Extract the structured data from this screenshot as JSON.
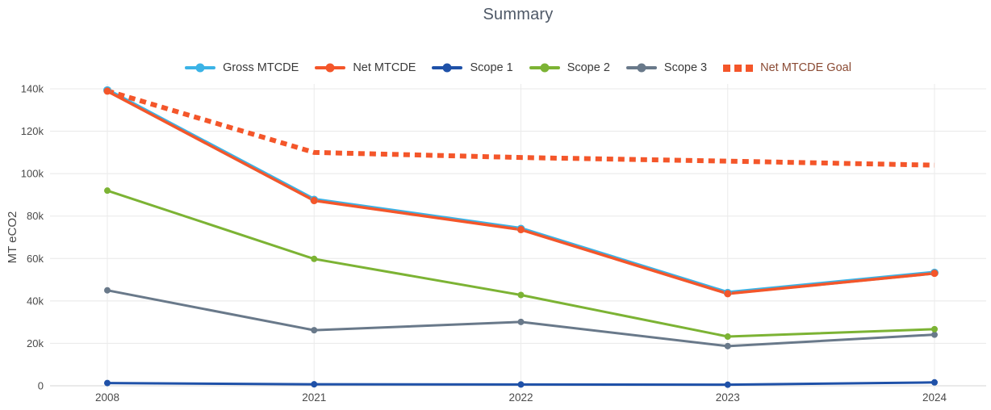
{
  "title": "Summary",
  "chart_data": {
    "type": "line",
    "title": "Summary",
    "xlabel": "",
    "ylabel": "MT eCO2",
    "ylim": [
      0,
      140000
    ],
    "ytick_values": [
      0,
      20000,
      40000,
      60000,
      80000,
      100000,
      120000,
      140000
    ],
    "ytick_labels": [
      "0",
      "20k",
      "40k",
      "60k",
      "80k",
      "100k",
      "120k",
      "140k"
    ],
    "categories": [
      "2008",
      "2021",
      "2022",
      "2023",
      "2024"
    ],
    "grid": true,
    "legend_position": "top",
    "series": [
      {
        "name": "Gross MTCDE",
        "color": "#3bb3e6",
        "style": "solid",
        "markers": true,
        "label_color": "#3a3a3a",
        "values": [
          139300,
          87700,
          74000,
          43800,
          53300
        ]
      },
      {
        "name": "Net MTCDE",
        "color": "#f4562a",
        "style": "solid",
        "markers": true,
        "label_color": "#3a3a3a",
        "values": [
          138900,
          87300,
          73600,
          43400,
          53000
        ]
      },
      {
        "name": "Scope 1",
        "color": "#1f51a8",
        "style": "solid",
        "markers": true,
        "label_color": "#3a3a3a",
        "values": [
          1300,
          700,
          600,
          500,
          1600
        ]
      },
      {
        "name": "Scope 2",
        "color": "#7cb334",
        "style": "solid",
        "markers": true,
        "label_color": "#3a3a3a",
        "values": [
          92000,
          59800,
          42800,
          23200,
          26700
        ]
      },
      {
        "name": "Scope 3",
        "color": "#69798a",
        "style": "solid",
        "markers": true,
        "label_color": "#3a3a3a",
        "values": [
          45000,
          26200,
          30100,
          18700,
          24100
        ]
      },
      {
        "name": "Net MTCDE Goal",
        "color": "#f4562a",
        "style": "dashed",
        "markers": false,
        "label_color": "#8a4a33",
        "values": [
          139000,
          110000,
          107600,
          105900,
          104000
        ]
      }
    ],
    "colors": {
      "grid": "#e8e8e8",
      "zero_line": "#d5d5d5",
      "tick_text": "#4a4a4a",
      "title_text": "#4e5866"
    }
  }
}
